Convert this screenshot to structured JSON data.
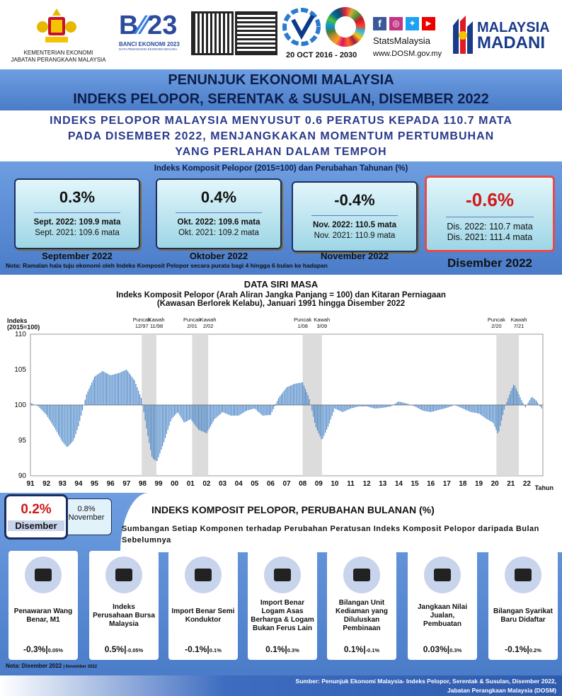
{
  "header": {
    "ministry": "KEMENTERIAN EKONOMI",
    "dept": "JABATAN PERANGKAAN MALAYSIA",
    "banci": "BANCI EKONOMI 2023",
    "banci_sub": "DATA PEMANGKIN EKONOMI NEGARA",
    "date": "20 OCT  2016 - 2030",
    "stats": "StatsMalaysia",
    "web": "www.DOSM.gov.my",
    "madani1": "MALAYSIA",
    "madani2": "MADANI"
  },
  "title": {
    "line1": "PENUNJUK EKONOMI MALAYSIA",
    "line2": "INDEKS PELOPOR, SERENTAK & SUSULAN, DISEMBER 2022"
  },
  "headline": {
    "l1": "INDEKS PELOPOR MALAYSIA MENYUSUT 0.6 PERATUS KEPADA 110.7 MATA",
    "l2": "PADA DISEMBER 2022, MENJANGKAKAN MOMENTUM PERTUMBUHAN",
    "l3": "YANG PERLAHAN DALAM TEMPOH"
  },
  "kpi": {
    "caption": "Indeks Komposit Pelopor (2015=100) dan Perubahan Tahunan (%)",
    "boxes": [
      {
        "value": "0.3%",
        "a": "Sept. 2022: 109.9 mata",
        "b": "Sept. 2021: 109.6 mata",
        "label": "September 2022"
      },
      {
        "value": "0.4%",
        "a": "Okt. 2022: 109.6 mata",
        "b": "Okt. 2021: 109.2 mata",
        "label": "Oktober 2022"
      },
      {
        "value": "-0.4%",
        "a": "Nov. 2022: 110.5 mata",
        "b": "Nov. 2021: 110.9 mata",
        "label": "November 2022"
      },
      {
        "value": "-0.6%",
        "a": "Dis. 2022: 110.7 mata",
        "b": "Dis. 2021: 111.4 mata",
        "label": "Disember 2022"
      }
    ],
    "note": "Nota: Ramalan hala tuju ekonomi oleh Indeks Komposit Pelopor secara purata bagi 4 hingga 6 bulan ke hadapan"
  },
  "series": {
    "heading": "DATA SIRI MASA",
    "c1": "Indeks Komposit Pelopor (Arah Aliran Jangka Panjang = 100) dan Kitaran Perniagaan",
    "c2": "(Kawasan  Berlorek Kelabu), Januari 1991 hingga Disember 2022"
  },
  "chart_data": {
    "type": "bar",
    "ylabel": "Indeks (2015=100)",
    "xlabel": "Tahun",
    "ylim": [
      90,
      110
    ],
    "yticks": [
      "110",
      "105",
      "100",
      "95",
      "90"
    ],
    "years": [
      "91",
      "92",
      "93",
      "94",
      "95",
      "96",
      "97",
      "98",
      "99",
      "00",
      "01",
      "02",
      "03",
      "04",
      "05",
      "06",
      "07",
      "08",
      "09",
      "10",
      "11",
      "12",
      "13",
      "14",
      "15",
      "16",
      "17",
      "18",
      "19",
      "20",
      "21",
      "22"
    ],
    "annotations": [
      {
        "t1": "Puncak",
        "t2": "12/97"
      },
      {
        "t1": "Kawah",
        "t2": "11/98"
      },
      {
        "t1": "Puncak",
        "t2": "2/01"
      },
      {
        "t1": "Kawah",
        "t2": "2/02"
      },
      {
        "t1": "Puncak",
        "t2": "1/08"
      },
      {
        "t1": "Kawah",
        "t2": "3/09"
      },
      {
        "t1": "Puncak",
        "t2": "2/20"
      },
      {
        "t1": "Kawah",
        "t2": "7/21"
      }
    ],
    "shaded": [
      [
        1997.95,
        1998.87
      ],
      [
        2001.1,
        2002.1
      ],
      [
        2008.0,
        2009.2
      ],
      [
        2020.1,
        2021.5
      ]
    ],
    "points": [
      [
        1991.0,
        100.3
      ],
      [
        1991.5,
        99.8
      ],
      [
        1992.0,
        98.6
      ],
      [
        1992.5,
        96.8
      ],
      [
        1993.0,
        94.8
      ],
      [
        1993.3,
        94.0
      ],
      [
        1993.7,
        95.0
      ],
      [
        1994.0,
        97.0
      ],
      [
        1994.5,
        101.5
      ],
      [
        1995.0,
        104.0
      ],
      [
        1995.5,
        104.8
      ],
      [
        1996.0,
        104.2
      ],
      [
        1996.5,
        104.5
      ],
      [
        1997.0,
        105.0
      ],
      [
        1997.5,
        103.5
      ],
      [
        1997.95,
        100.8
      ],
      [
        1998.3,
        96.0
      ],
      [
        1998.6,
        92.5
      ],
      [
        1998.9,
        92.0
      ],
      [
        1999.3,
        94.5
      ],
      [
        1999.8,
        98.0
      ],
      [
        2000.2,
        99.0
      ],
      [
        2000.6,
        97.5
      ],
      [
        2001.0,
        98.0
      ],
      [
        2001.5,
        96.5
      ],
      [
        2002.0,
        96.0
      ],
      [
        2002.5,
        98.0
      ],
      [
        2003.0,
        99.0
      ],
      [
        2003.5,
        98.5
      ],
      [
        2004.0,
        98.5
      ],
      [
        2004.5,
        99.2
      ],
      [
        2005.0,
        99.5
      ],
      [
        2005.5,
        98.5
      ],
      [
        2006.0,
        98.6
      ],
      [
        2006.5,
        101.0
      ],
      [
        2007.0,
        102.5
      ],
      [
        2007.5,
        103.0
      ],
      [
        2008.0,
        103.2
      ],
      [
        2008.4,
        101.0
      ],
      [
        2008.8,
        97.0
      ],
      [
        2009.2,
        95.0
      ],
      [
        2009.6,
        97.0
      ],
      [
        2010.0,
        99.5
      ],
      [
        2010.5,
        99.0
      ],
      [
        2011.0,
        99.5
      ],
      [
        2011.5,
        99.8
      ],
      [
        2012.0,
        99.8
      ],
      [
        2012.5,
        99.5
      ],
      [
        2013.0,
        99.6
      ],
      [
        2013.5,
        99.8
      ],
      [
        2014.0,
        100.5
      ],
      [
        2014.5,
        100.2
      ],
      [
        2015.0,
        99.8
      ],
      [
        2015.5,
        99.2
      ],
      [
        2016.0,
        99.0
      ],
      [
        2016.5,
        99.3
      ],
      [
        2017.0,
        99.6
      ],
      [
        2017.5,
        100.0
      ],
      [
        2018.0,
        99.5
      ],
      [
        2018.5,
        99.0
      ],
      [
        2019.0,
        98.8
      ],
      [
        2019.5,
        98.0
      ],
      [
        2019.9,
        97.5
      ],
      [
        2020.2,
        95.8
      ],
      [
        2020.6,
        99.5
      ],
      [
        2021.0,
        102.0
      ],
      [
        2021.2,
        103.0
      ],
      [
        2021.6,
        101.0
      ],
      [
        2021.9,
        99.6
      ],
      [
        2022.3,
        101.2
      ],
      [
        2022.6,
        100.6
      ],
      [
        2022.95,
        99.4
      ]
    ]
  },
  "monthly": {
    "dec_val": "0.2%",
    "dec_lbl": "Disember",
    "nov_val": "0.8%",
    "nov_lbl": "November",
    "heading": "INDEKS KOMPOSIT PELOPOR, PERUBAHAN BULANAN (%)",
    "sub": "Sumbangan  Setiap  Komponen  terhadap  Perubahan  Peratusan  Indeks  Komposit  Pelopor daripada  Bulan  Sebelumnya",
    "cards": [
      {
        "name": "Penawaran Wang Benar, M1",
        "icon": "wallet-icon",
        "v": "-0.3%|",
        "s": "0.05%"
      },
      {
        "name": "Indeks Perusahaan Bursa Malaysia",
        "icon": "chart-magnifier-icon",
        "v": "0.5%|",
        "s": "-0.05%"
      },
      {
        "name": "Import Benar Semi Konduktor",
        "icon": "chip-icon",
        "v": "-0.1%|",
        "s": "0.1%"
      },
      {
        "name": "Import Benar Logam Asas Berharga & Logam Bukan Ferus Lain",
        "icon": "metal-bar-icon",
        "v": "0.1%|",
        "s": "0.3%"
      },
      {
        "name": "Bilangan Unit Kediaman yang Diluluskan Pembinaan",
        "icon": "house-icon",
        "v": "0.1%|",
        "s": "-0.1%"
      },
      {
        "name": "Jangkaan Nilai Jualan, Pembuatan",
        "icon": "presenter-icon",
        "v": "0.03%|",
        "s": "0.3%"
      },
      {
        "name": "Bilangan Syarikat Baru Didaftar",
        "icon": "building-icon",
        "v": "-0.1%|",
        "s": "0.2%"
      }
    ],
    "note1": "Nota: Disember  2022",
    "note2": "| November  2022"
  },
  "footer": {
    "l1": "Sumber: Penunjuk Ekonomi Malaysia- Indeks Pelopor, Serentak & Susulan, Disember 2022,",
    "l2": "Jabatan Perangkaan Malaysia (DOSM)"
  }
}
